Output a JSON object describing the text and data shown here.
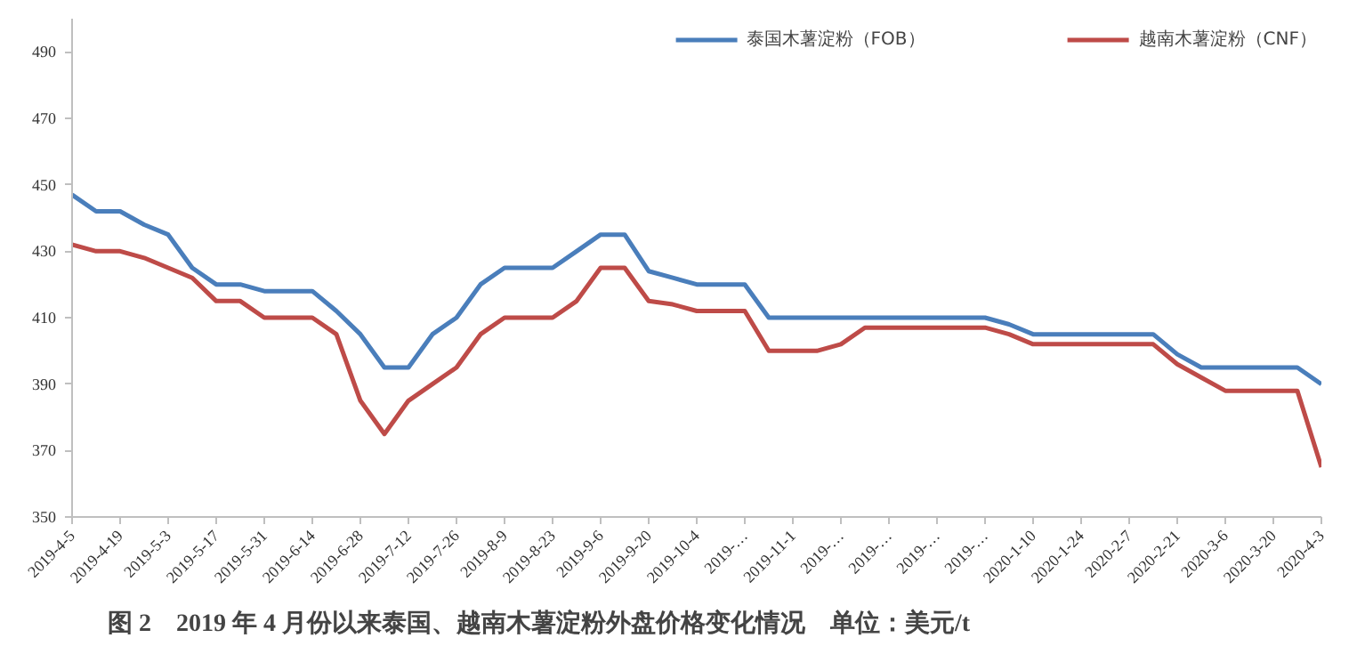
{
  "chart_data": {
    "type": "line",
    "title": "图 2　2019 年 4 月份以来泰国、越南木薯淀粉外盘价格变化情况　单位：美元/t",
    "categories": [
      "2019-4-5",
      null,
      "2019-4-19",
      null,
      "2019-5-3",
      null,
      "2019-5-17",
      null,
      "2019-5-31",
      null,
      "2019-6-14",
      null,
      "2019-6-28",
      null,
      "2019-7-12",
      null,
      "2019-7-26",
      null,
      "2019-8-9",
      null,
      "2019-8-23",
      null,
      "2019-9-6",
      null,
      "2019-9-20",
      null,
      "2019-10-4",
      null,
      "2019-…",
      null,
      "2019-11-1",
      null,
      "2019-…",
      null,
      "2019-…",
      null,
      "2019-…",
      null,
      "2019-…",
      null,
      "2020-1-10",
      null,
      "2020-1-24",
      null,
      "2020-2-7",
      null,
      "2020-2-21",
      null,
      "2020-3-6",
      null,
      "2020-3-20",
      null,
      "2020-4-3"
    ],
    "series": [
      {
        "name": "泰国木薯淀粉（FOB）",
        "color": "#4a7ebb",
        "values": [
          447,
          442,
          442,
          438,
          435,
          425,
          420,
          420,
          418,
          418,
          418,
          412,
          405,
          395,
          395,
          405,
          410,
          420,
          425,
          425,
          425,
          430,
          435,
          435,
          424,
          422,
          420,
          420,
          420,
          410,
          410,
          410,
          410,
          410,
          410,
          410,
          410,
          410,
          410,
          408,
          405,
          405,
          405,
          405,
          405,
          405,
          399,
          395,
          395,
          395,
          395,
          395,
          390
        ]
      },
      {
        "name": "越南木薯淀粉（CNF）",
        "color": "#be4b48",
        "values": [
          432,
          430,
          430,
          428,
          425,
          422,
          415,
          415,
          410,
          410,
          410,
          405,
          385,
          375,
          385,
          390,
          395,
          405,
          410,
          410,
          410,
          415,
          425,
          425,
          415,
          414,
          412,
          412,
          412,
          400,
          400,
          400,
          402,
          407,
          407,
          407,
          407,
          407,
          407,
          405,
          402,
          402,
          402,
          402,
          402,
          402,
          396,
          392,
          388,
          388,
          388,
          388,
          365
        ]
      }
    ],
    "ylim": [
      350,
      500
    ],
    "yticks": [
      350,
      370,
      390,
      410,
      430,
      450,
      470,
      490
    ],
    "grid": false,
    "legend": "top right",
    "marker": "none",
    "line_style": "solid"
  }
}
